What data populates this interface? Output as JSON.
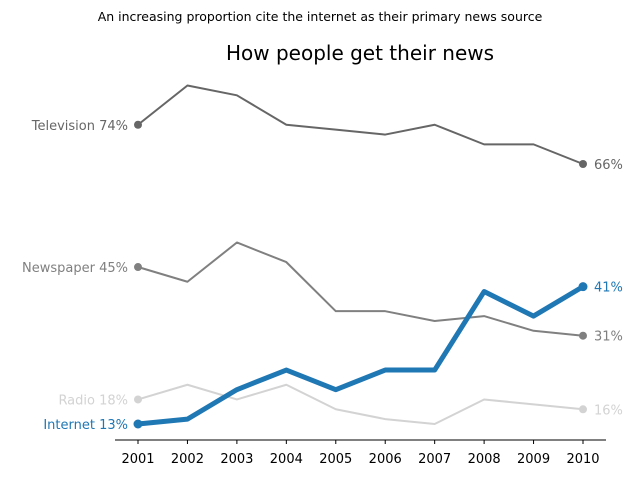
{
  "suptitle": "An increasing proportion cite the internet as their primary news source",
  "chart_data": {
    "type": "line",
    "title": "How people get their news",
    "xlabel": "",
    "ylabel": "",
    "x": [
      "2001",
      "2002",
      "2003",
      "2004",
      "2005",
      "2006",
      "2007",
      "2008",
      "2009",
      "2010"
    ],
    "ylim": [
      10,
      80
    ],
    "grid": false,
    "legend": "none",
    "series": [
      {
        "name": "Television",
        "start_label": "Television 74%",
        "end_label": "66%",
        "color": "#666666",
        "width": "normal",
        "values": [
          74,
          82,
          80,
          74,
          73,
          72,
          74,
          70,
          70,
          66
        ]
      },
      {
        "name": "Newspaper",
        "start_label": "Newspaper 45%",
        "end_label": "31%",
        "color": "#808080",
        "width": "normal",
        "values": [
          45,
          42,
          50,
          46,
          36,
          36,
          34,
          35,
          32,
          31
        ]
      },
      {
        "name": "Radio",
        "start_label": "Radio 18%",
        "end_label": "16%",
        "color": "#d3d3d3",
        "width": "normal",
        "values": [
          18,
          21,
          18,
          21,
          16,
          14,
          13,
          18,
          17,
          16
        ]
      },
      {
        "name": "Internet",
        "start_label": "Internet 13%",
        "end_label": "41%",
        "color": "#1f77b4",
        "width": "bold",
        "values": [
          13,
          14,
          20,
          24,
          20,
          24,
          24,
          40,
          35,
          41
        ]
      }
    ]
  }
}
